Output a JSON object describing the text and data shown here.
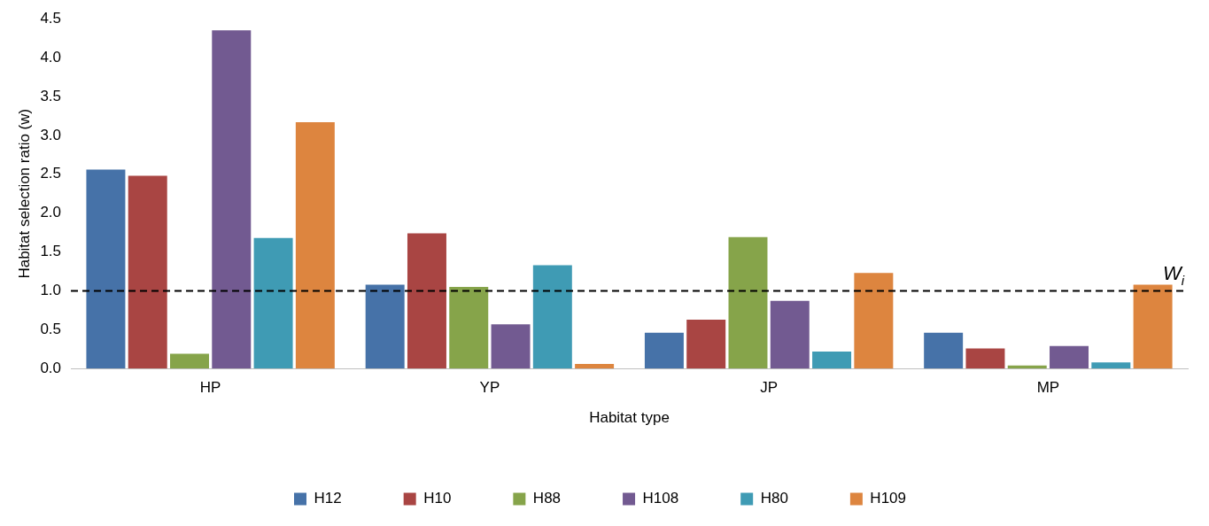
{
  "chart_data": {
    "type": "bar",
    "xlabel": "Habitat type",
    "ylabel": "Habitat selection ratio (w)",
    "categories": [
      "HP",
      "YP",
      "JP",
      "MP"
    ],
    "series": [
      {
        "name": "H12",
        "color": "#4672a8",
        "values": [
          2.56,
          1.08,
          0.46,
          0.46
        ]
      },
      {
        "name": "H10",
        "color": "#a94543",
        "values": [
          2.48,
          1.74,
          0.63,
          0.26
        ]
      },
      {
        "name": "H88",
        "color": "#86a44a",
        "values": [
          0.19,
          1.05,
          1.69,
          0.04
        ]
      },
      {
        "name": "H108",
        "color": "#725a91",
        "values": [
          4.35,
          0.57,
          0.87,
          0.29
        ]
      },
      {
        "name": "H80",
        "color": "#3f9bb4",
        "values": [
          1.68,
          1.33,
          0.22,
          0.08
        ]
      },
      {
        "name": "H109",
        "color": "#dd853f",
        "values": [
          3.17,
          0.06,
          1.23,
          1.08
        ]
      }
    ],
    "ylim": [
      0,
      4.5
    ],
    "yticks": [
      {
        "value": 0,
        "label": "0.0"
      },
      0.5,
      {
        "value": 1,
        "label": "1.0"
      },
      1.5,
      {
        "value": 2,
        "label": "2.0"
      },
      2.5,
      {
        "value": 3,
        "label": "3.0"
      },
      3.5,
      {
        "value": 4,
        "label": "4.0"
      },
      4.5
    ],
    "ref_lines": [
      {
        "axis": "y",
        "value": 1,
        "label": "W$_{i}$",
        "color": "#000000",
        "line_style": "dashed"
      }
    ],
    "grid": false,
    "legend": "bottom"
  }
}
